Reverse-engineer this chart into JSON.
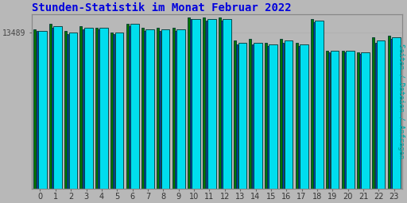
{
  "title": "Stunden-Statistik im Monat Februar 2022",
  "title_color": "#0000dd",
  "ylabel": "Seiten / Dateien / Anfragen",
  "ylabel_color": "#00aaaa",
  "ylabel_fontsize": 6.5,
  "ytick_label": "13489",
  "ytick_color": "#444444",
  "background_color": "#b8b8b8",
  "plot_bg_color": "#b8b8b8",
  "bar_color_cyan": "#00ddee",
  "bar_color_blue": "#0044bb",
  "bar_color_green": "#007700",
  "bar_edge_color": "#003333",
  "categories": [
    0,
    1,
    2,
    3,
    4,
    5,
    6,
    7,
    8,
    9,
    10,
    11,
    12,
    13,
    14,
    15,
    16,
    17,
    18,
    19,
    20,
    21,
    22,
    23
  ],
  "values_cyan": [
    95,
    98,
    94,
    97,
    97,
    94,
    99,
    96,
    96,
    96,
    102,
    102,
    102,
    88,
    88,
    87,
    89,
    87,
    101,
    83,
    83,
    82,
    89,
    91
  ],
  "values_blue": [
    95,
    97,
    93,
    96,
    96,
    93,
    98,
    95,
    95,
    95,
    102,
    101,
    101,
    87,
    87,
    86,
    88,
    86,
    100,
    82,
    82,
    81,
    88,
    90
  ],
  "values_green": [
    96,
    99,
    95,
    98,
    97,
    94,
    99,
    97,
    97,
    97,
    103,
    103,
    103,
    89,
    90,
    88,
    90,
    88,
    102,
    83,
    83,
    82,
    91,
    92
  ],
  "ylim_min": 0,
  "ylim_max": 105,
  "title_fontsize": 10,
  "tick_fontsize": 7
}
